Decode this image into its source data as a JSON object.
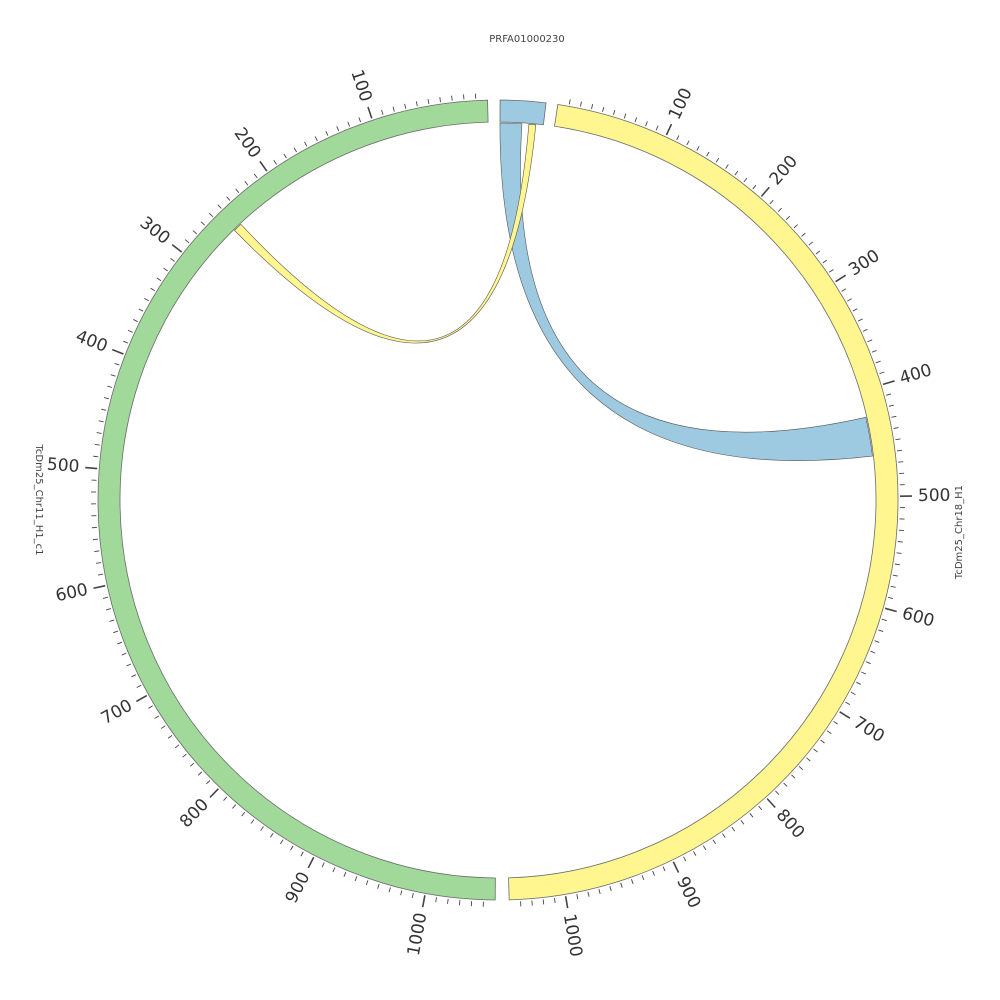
{
  "segments": [
    {
      "id": "prfa",
      "name": "PRFA01000230",
      "color": "#9ecae1",
      "length": 75,
      "tick_labels": []
    },
    {
      "id": "chr18",
      "name": "TcDm25_Chr18_H1",
      "color": "#fff68f",
      "length": 1050,
      "tick_labels": [
        "100",
        "200",
        "300",
        "400",
        "500",
        "600",
        "700",
        "800",
        "900",
        "1000"
      ]
    },
    {
      "id": "chr11",
      "name": "TcDm25_Chr11_H1_c1",
      "color": "#a1d99b",
      "length": 1060,
      "tick_labels": [
        "100",
        "200",
        "300",
        "400",
        "500",
        "600",
        "700",
        "800",
        "900",
        "1000"
      ]
    }
  ],
  "links": [
    {
      "from": "prfa",
      "from_range": [
        0,
        38
      ],
      "to": "chr18",
      "to_range": [
        425,
        462
      ],
      "color": "#9ecae1"
    },
    {
      "from": "prfa",
      "from_range": [
        50,
        62
      ],
      "to": "chr11",
      "to_range": [
        247,
        255
      ],
      "color": "#fff68f"
    }
  ]
}
